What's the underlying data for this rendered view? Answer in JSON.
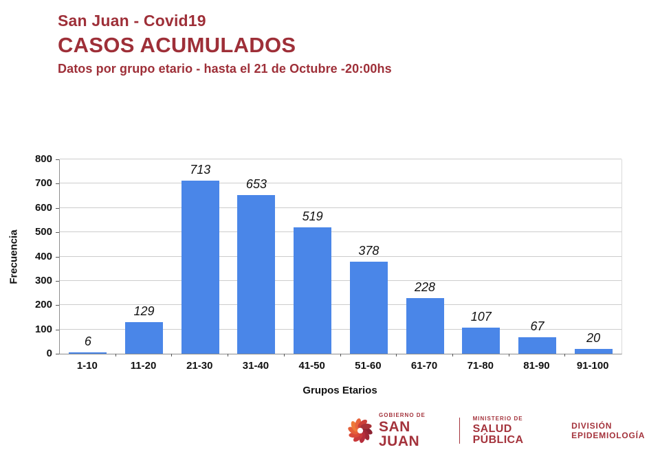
{
  "header": {
    "pretitle": "San Juan - Covid19",
    "title": "CASOS ACUMULADOS",
    "subtitle": "Datos por grupo etario - hasta el 21 de Octubre -20:00hs"
  },
  "colors": {
    "accent_maroon": "#9e2f38",
    "footer_maroon": "#a4333c",
    "bar_blue": "#4a86e8",
    "gridline_gray": "#cccccc",
    "axis_gray": "#8c8c8c",
    "text_black": "#111111"
  },
  "chart_data": {
    "type": "bar",
    "categories": [
      "1-10",
      "11-20",
      "21-30",
      "31-40",
      "41-50",
      "51-60",
      "61-70",
      "71-80",
      "81-90",
      "91-100"
    ],
    "values": [
      6,
      129,
      713,
      653,
      519,
      378,
      228,
      107,
      67,
      20
    ],
    "title": "",
    "xlabel": "Grupos Etarios",
    "ylabel": "Frecuencia",
    "ylim": [
      0,
      800
    ],
    "ytick_step": 100,
    "grid": true,
    "legend_position": "none",
    "bar_color": "#4a86e8"
  },
  "footer": {
    "logo_icon": "san-juan-swirl-icon",
    "gobierno_small": "GOBIERNO DE",
    "gobierno_large": "SAN JUAN",
    "ministerio_small": "MINISTERIO DE",
    "ministerio_large": "SALUD PÚBLICA",
    "division": "DIVISIÓN EPIDEMIOLOGÍA"
  }
}
